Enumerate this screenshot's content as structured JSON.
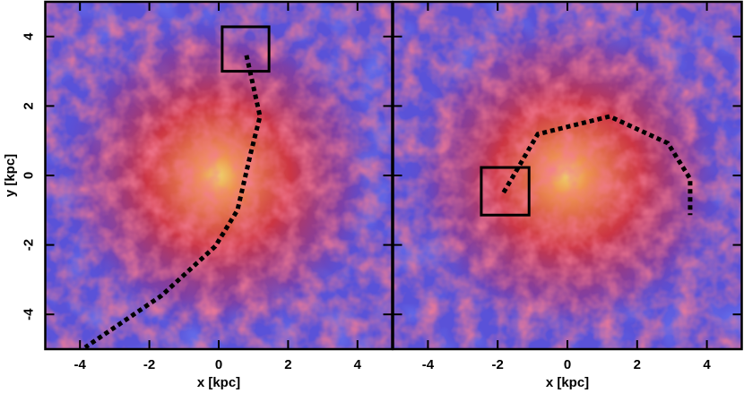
{
  "chart_data": [
    {
      "type": "image",
      "xlabel": "x [kpc]",
      "ylabel": "y [kpc]",
      "xlim": [
        -5,
        5
      ],
      "ylim": [
        -5,
        5
      ],
      "xticks": [
        -4,
        -2,
        0,
        2,
        4
      ],
      "yticks": [
        -4,
        -2,
        0,
        2,
        4
      ],
      "ytick_labels": true,
      "track": {
        "x": [
          0.8,
          1.19,
          0.93,
          0.54,
          -0.1,
          -1.65,
          -3.85
        ],
        "y": [
          3.46,
          1.7,
          0.67,
          -1.0,
          -2.04,
          -3.46,
          -4.95
        ]
      },
      "box": {
        "x": [
          0.1,
          1.45
        ],
        "y": [
          3.0,
          4.28
        ]
      }
    },
    {
      "type": "image",
      "xlabel": "x [kpc]",
      "xlim": [
        -5,
        5
      ],
      "ylim": [
        -5,
        5
      ],
      "xticks": [
        -4,
        -2,
        0,
        2,
        4
      ],
      "yticks": [
        -4,
        -2,
        0,
        2,
        4
      ],
      "ytick_labels": false,
      "track": {
        "x": [
          -1.83,
          -0.85,
          1.21,
          2.88,
          3.52,
          3.52
        ],
        "y": [
          -0.49,
          1.19,
          1.7,
          0.93,
          -0.1,
          -1.14
        ]
      },
      "box": {
        "x": [
          -2.47,
          -1.1
        ],
        "y": [
          -1.14,
          0.23
        ]
      }
    }
  ]
}
